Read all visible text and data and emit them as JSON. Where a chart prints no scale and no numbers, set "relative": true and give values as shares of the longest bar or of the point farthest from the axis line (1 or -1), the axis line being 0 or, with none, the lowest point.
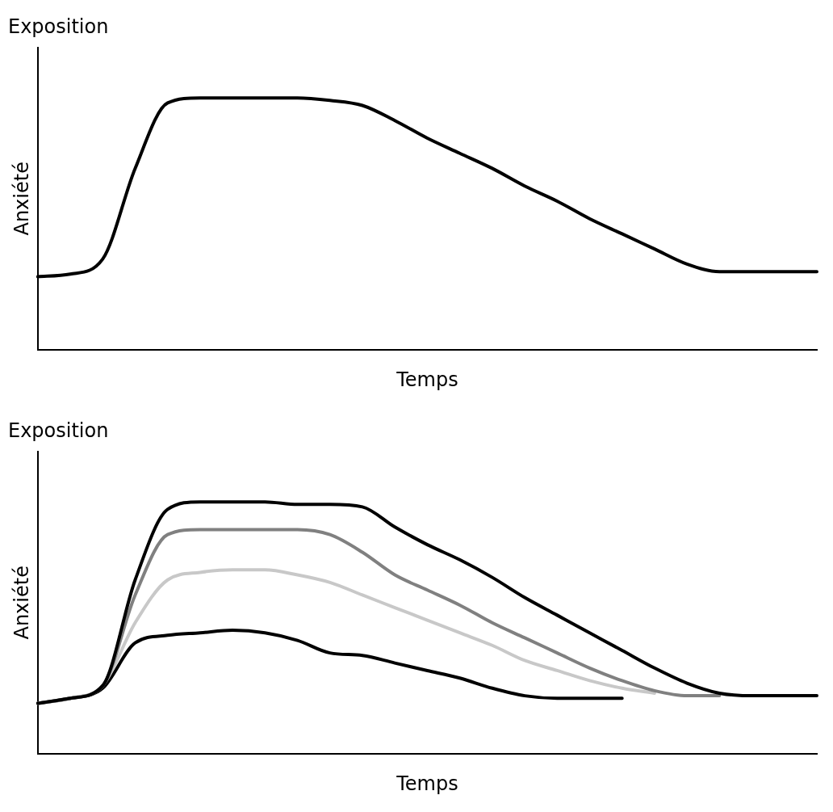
{
  "chart_data": [
    {
      "type": "line",
      "title": "Exposition",
      "xlabel": "Temps",
      "ylabel": "Anxiété",
      "relative": true,
      "grid": false,
      "legend": false,
      "marker": "none",
      "line_style": "solid",
      "categories": [
        null,
        null,
        null,
        null,
        null,
        null,
        null,
        null,
        null,
        null,
        null,
        null,
        null,
        null,
        null,
        null,
        null,
        null,
        null,
        null,
        null,
        null,
        null,
        null,
        null
      ],
      "series": [
        {
          "color": "#000000",
          "values": [
            0.29,
            0.3,
            0.36,
            0.72,
            0.98,
            1,
            1,
            1,
            1,
            0.99,
            0.97,
            0.91,
            0.84,
            0.78,
            0.72,
            0.65,
            0.59,
            0.52,
            0.46,
            0.4,
            0.34,
            0.31,
            0.31,
            0.31,
            0.31
          ]
        }
      ]
    },
    {
      "type": "line",
      "title": "Exposition",
      "xlabel": "Temps",
      "ylabel": "Anxiété",
      "relative": true,
      "grid": false,
      "legend": false,
      "marker": "none",
      "line_style": "solid",
      "categories": [
        null,
        null,
        null,
        null,
        null,
        null,
        null,
        null,
        null,
        null,
        null,
        null,
        null,
        null,
        null,
        null,
        null,
        null,
        null,
        null,
        null,
        null,
        null,
        null,
        null
      ],
      "series": [
        {
          "color": "#000000",
          "values": [
            0.2,
            0.22,
            0.27,
            0.69,
            0.97,
            1,
            1,
            1,
            0.99,
            0.99,
            0.98,
            0.9,
            0.83,
            0.77,
            0.7,
            0.62,
            0.55,
            0.48,
            0.41,
            0.34,
            0.28,
            0.24,
            0.23,
            0.23,
            0.23
          ]
        },
        {
          "color": "#808080",
          "values": [
            0.2,
            0.22,
            0.27,
            0.63,
            0.87,
            0.89,
            0.89,
            0.89,
            0.89,
            0.87,
            0.8,
            0.71,
            0.65,
            0.59,
            0.52,
            0.46,
            0.4,
            0.34,
            0.29,
            0.25,
            0.23,
            0.23,
            null,
            null,
            null
          ]
        },
        {
          "color": "#c8c8c8",
          "values": [
            0.2,
            0.22,
            0.27,
            0.52,
            0.69,
            0.72,
            0.73,
            0.73,
            0.71,
            0.68,
            0.63,
            0.58,
            0.53,
            0.48,
            0.43,
            0.37,
            0.33,
            0.29,
            0.26,
            0.24,
            null,
            null,
            null,
            null,
            null
          ]
        },
        {
          "color": "#000000",
          "values": [
            0.2,
            0.22,
            0.26,
            0.44,
            0.47,
            0.48,
            0.49,
            0.48,
            0.45,
            0.4,
            0.39,
            0.36,
            0.33,
            0.3,
            0.26,
            0.23,
            0.22,
            0.22,
            0.22,
            null,
            null,
            null,
            null,
            null,
            null
          ]
        }
      ]
    }
  ]
}
